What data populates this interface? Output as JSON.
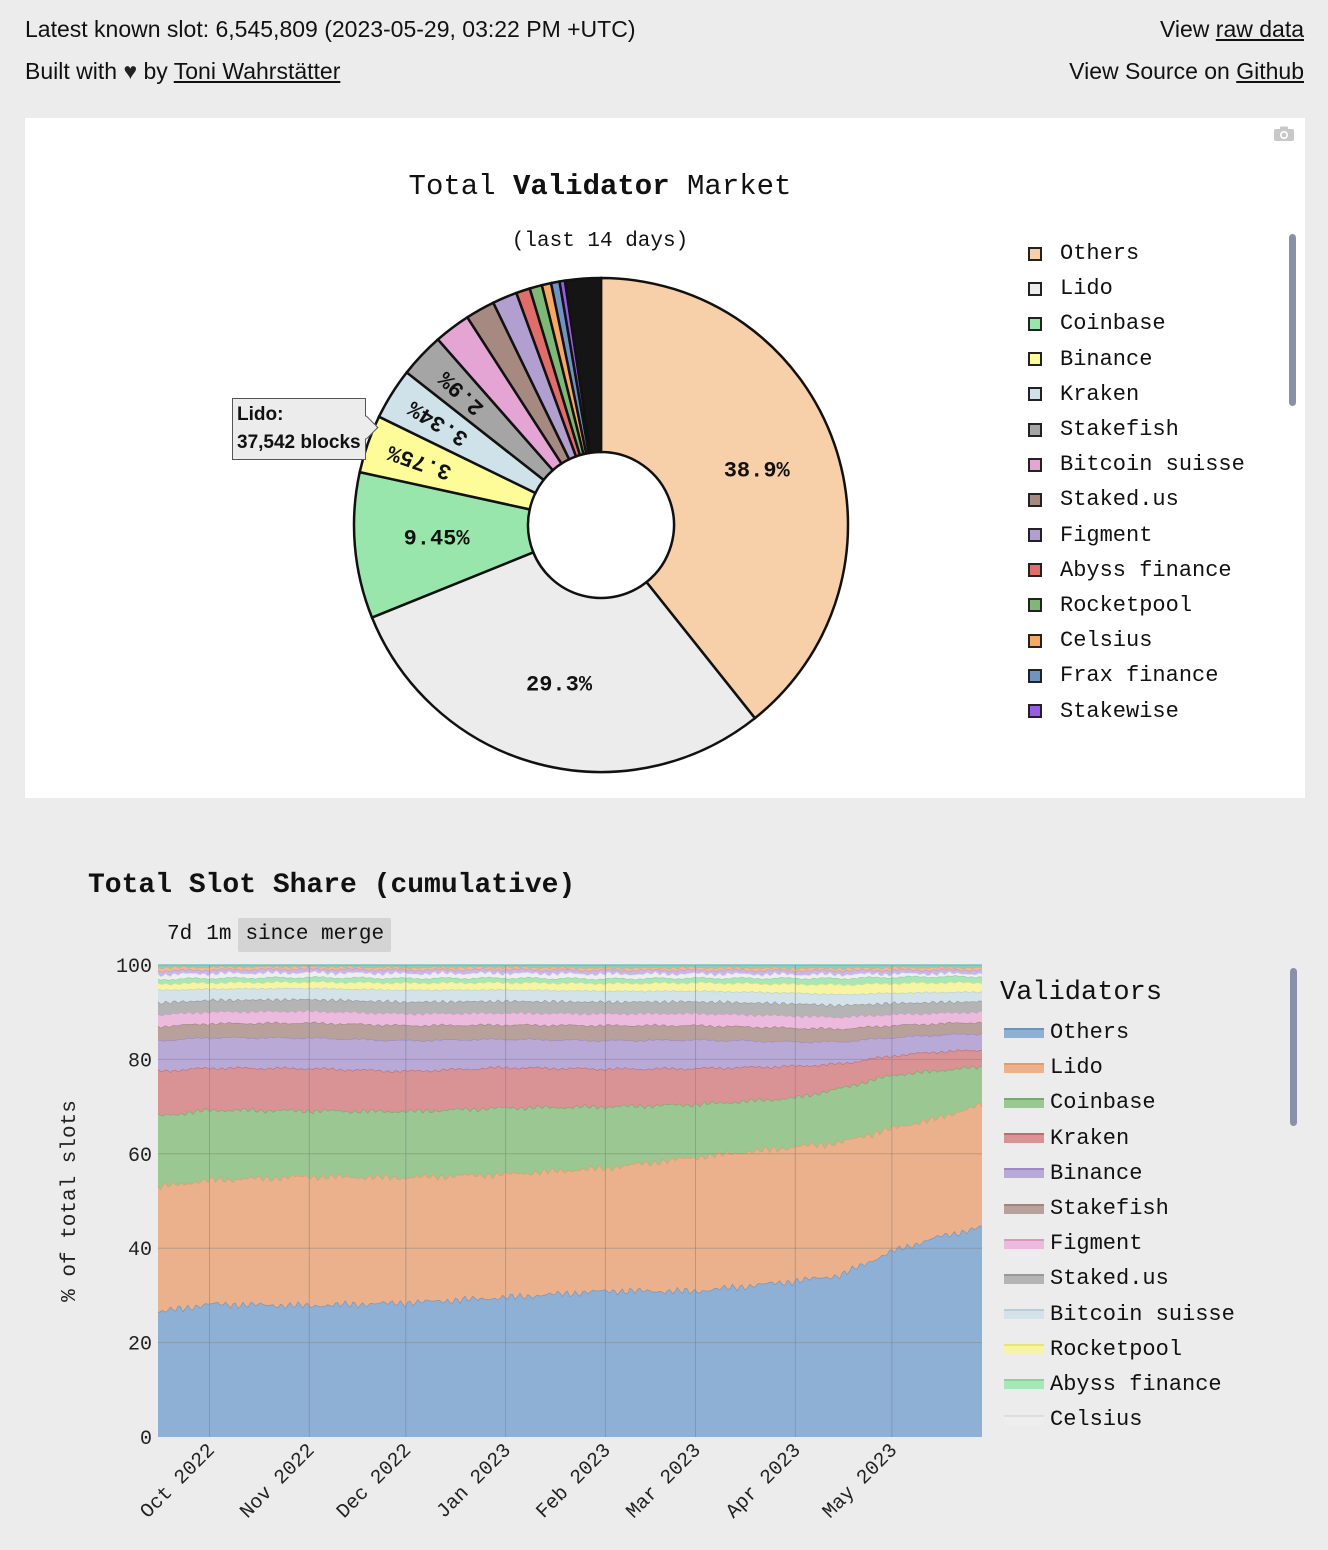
{
  "header": {
    "latest_slot": "Latest known slot: 6,545,809 (2023-05-29, 03:22 PM +UTC)",
    "view_prefix": "View",
    "raw_data_link": "raw data",
    "built_with": "Built with",
    "heart_icon": "♥",
    "by": "by",
    "author_link": "Toni Wahrstätter",
    "source_prefix": "View Source on",
    "github_link": "Github"
  },
  "colors": {
    "page_bg": "#ececec",
    "panel_bg": "#ffffff"
  },
  "pie_panel": {
    "camera_icon": "camera-icon",
    "tooltip_name": "Lido:",
    "tooltip_value": "37,542 blocks"
  },
  "area_panel": {
    "title": "Total Slot Share (cumulative)",
    "range_buttons": [
      "7d",
      "1m",
      "since merge"
    ],
    "legend_title": "Validators"
  },
  "chart_data": [
    {
      "type": "pie",
      "hole": true,
      "title_prefix": "Total ",
      "title_bold": "Validator",
      "title_suffix": " Market",
      "subtitle": "(last 14 days)",
      "labels": [
        "Others",
        "Lido",
        "Coinbase",
        "Binance",
        "Kraken",
        "Stakefish",
        "Bitcoin suisse",
        "Staked.us",
        "Figment",
        "Abyss finance",
        "Rocketpool",
        "Celsius",
        "Frax finance",
        "Stakewise"
      ],
      "values": [
        38.9,
        29.3,
        9.45,
        3.75,
        3.34,
        2.9,
        2.35,
        1.9,
        1.6,
        0.9,
        0.8,
        0.6,
        0.55,
        0.35
      ],
      "text_labels": [
        "38.9%",
        "29.3%",
        "9.45%",
        "3.75%",
        "3.34%",
        "2.9%",
        "",
        "",
        "",
        "",
        "",
        "",
        "",
        ""
      ],
      "colors": [
        "#f7cfa8",
        "#ececec",
        "#98e6ac",
        "#fdfc99",
        "#cfe2ea",
        "#a5a5a5",
        "#e4a4d4",
        "#a68a82",
        "#b19fd0",
        "#df6d6a",
        "#7fb876",
        "#f7a865",
        "#6f94c0",
        "#9a5be8"
      ],
      "remaining_color": "#151515",
      "remaining_value": 2.31,
      "legend_position": "right"
    },
    {
      "type": "area",
      "stacked": true,
      "y_axis_label": "% of total slots",
      "ylim": [
        0,
        100
      ],
      "yticks": [
        0,
        20,
        40,
        60,
        80,
        100
      ],
      "x_ticks": [
        "Oct 2022",
        "Nov 2022",
        "Dec 2022",
        "Jan 2023",
        "Feb 2023",
        "Mar 2023",
        "Apr 2023",
        "May 2023"
      ],
      "x_range": [
        "2022-09-15",
        "2023-05-29"
      ],
      "legend_position": "right",
      "x_dates": [
        "2022-09-15",
        "2022-10-01",
        "2022-11-01",
        "2022-12-01",
        "2023-01-01",
        "2023-02-01",
        "2023-03-01",
        "2023-04-01",
        "2023-04-15",
        "2023-05-01",
        "2023-05-15",
        "2023-05-29"
      ],
      "series": [
        {
          "name": "Others",
          "color": "#8fb0d5",
          "line": "#6f92ba",
          "values": [
            26.5,
            28.5,
            28,
            28.5,
            29.5,
            31,
            30.5,
            32,
            33,
            38.5,
            42,
            44.5
          ]
        },
        {
          "name": "Lido",
          "color": "#eab18c",
          "line": "#e59a6a",
          "values": [
            26.5,
            26.5,
            27.5,
            26.5,
            26,
            26,
            28,
            27.5,
            27,
            25.5,
            25,
            26
          ]
        },
        {
          "name": "Coinbase",
          "color": "#9bc793",
          "line": "#78a86e",
          "values": [
            15,
            15,
            14,
            14,
            14,
            13,
            11,
            10,
            11,
            11,
            10,
            8
          ]
        },
        {
          "name": "Kraken",
          "color": "#d99395",
          "line": "#c46a6c",
          "values": [
            9.5,
            9,
            9,
            8.5,
            8.5,
            8,
            7.5,
            6.5,
            5,
            4,
            4,
            3.5
          ]
        },
        {
          "name": "Binance",
          "color": "#b8a9d6",
          "line": "#9d89c4",
          "values": [
            6.5,
            6.5,
            6.5,
            6.5,
            6,
            6,
            6,
            5,
            4.5,
            3.8,
            3.5,
            3.5
          ]
        },
        {
          "name": "Stakefish",
          "color": "#b8a09b",
          "line": "#9e8680",
          "values": [
            3,
            3,
            3.2,
            3.2,
            3,
            3.2,
            3,
            2.8,
            2.6,
            2.5,
            2.4,
            2.4
          ]
        },
        {
          "name": "Figment",
          "color": "#ebbadc",
          "line": "#d998c4",
          "values": [
            2.5,
            2.5,
            2.5,
            2.5,
            2.5,
            2.5,
            2.5,
            2.5,
            2.4,
            2.3,
            2.2,
            2.2
          ]
        },
        {
          "name": "Staked.us",
          "color": "#b4b4b4",
          "line": "#989898",
          "values": [
            2.5,
            2.5,
            2.5,
            2.5,
            2.5,
            2.5,
            2.5,
            2.5,
            2.4,
            2.3,
            2.3,
            2.2
          ]
        },
        {
          "name": "Bitcoin suisse",
          "color": "#d4e2ea",
          "line": "#b9cdd9",
          "values": [
            2.7,
            2.4,
            2.4,
            2.5,
            2.4,
            2.3,
            2.2,
            2.2,
            2.2,
            2.1,
            2.1,
            2
          ]
        },
        {
          "name": "Rocketpool",
          "color": "#f7f4a4",
          "line": "#e7e27c",
          "values": [
            1.3,
            1.3,
            1.3,
            1.5,
            1.5,
            1.6,
            1.7,
            1.8,
            2,
            2,
            2,
            2
          ]
        },
        {
          "name": "Abyss finance",
          "color": "#a8e6b8",
          "line": "#86d49a",
          "values": [
            1,
            1,
            1,
            1,
            1,
            1,
            1,
            1.2,
            1.3,
            1.3,
            1.3,
            1.3
          ]
        },
        {
          "name": "Celsius",
          "color": "#eeeeee",
          "line": "#dddddd",
          "values": [
            1,
            1,
            1,
            1,
            1,
            1,
            0.9,
            0.8,
            0.8,
            0.7,
            0.6,
            0.6
          ]
        },
        {
          "name": "",
          "color": "#c9b6e8",
          "line": "#b19ddc",
          "values": [
            0.8,
            0.8,
            0.8,
            0.8,
            0.8,
            0.8,
            0.8,
            0.8,
            0.8,
            0.8,
            0.8,
            0.8
          ]
        },
        {
          "name": "",
          "color": "#f4b98d",
          "line": "#eea06c",
          "values": [
            0.7,
            0.6,
            0.5,
            0.5,
            0.5,
            0.5,
            0.5,
            0.5,
            0.5,
            0.5,
            0.5,
            0.5
          ]
        },
        {
          "name": "",
          "color": "#7fd3c8",
          "line": "#5fc0b4",
          "values": [
            0.5,
            0.4,
            0.3,
            0.5,
            0.4,
            0.6,
            0.5,
            0.6,
            0.6,
            0.5,
            0.5,
            0.5
          ]
        }
      ]
    }
  ]
}
